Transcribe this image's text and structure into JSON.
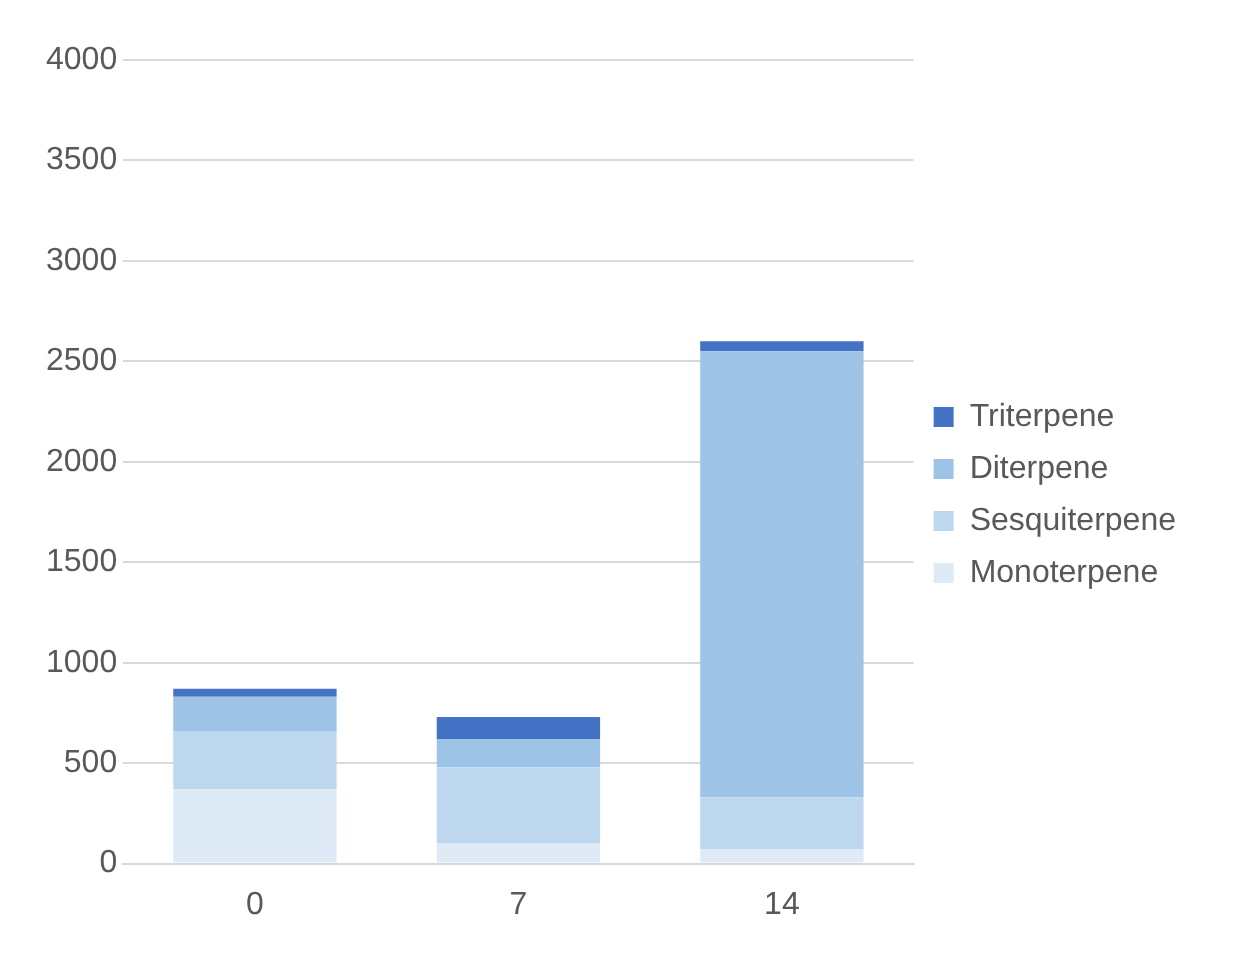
{
  "chart_data": {
    "type": "bar",
    "stacked": true,
    "categories": [
      "0",
      "7",
      "14"
    ],
    "series": [
      {
        "name": "Monoterpene",
        "color": "#deebf7",
        "values": [
          370,
          100,
          70
        ]
      },
      {
        "name": "Sesquiterpene",
        "color": "#bdd7ee",
        "values": [
          290,
          380,
          260
        ]
      },
      {
        "name": "Diterpene",
        "color": "#9dc3e6",
        "values": [
          170,
          140,
          2220
        ]
      },
      {
        "name": "Triterpene",
        "color": "#4472c4",
        "values": [
          40,
          110,
          50
        ]
      }
    ],
    "ylim": [
      0,
      4000
    ],
    "yticks": [
      0,
      500,
      1000,
      1500,
      2000,
      2500,
      3000,
      3500,
      4000
    ],
    "grid": "y",
    "legend": "right"
  }
}
